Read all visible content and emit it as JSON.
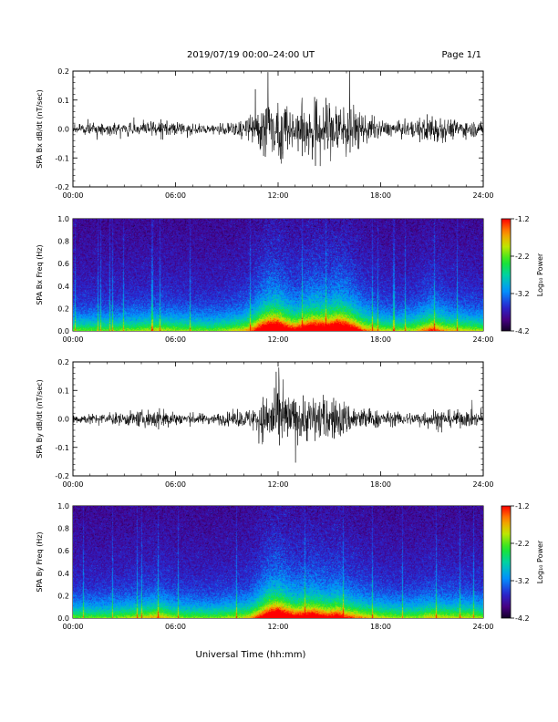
{
  "header": {
    "title": "2019/07/19  00:00–24:00 UT",
    "page": "Page 1/1"
  },
  "footer": {
    "xlabel": "Universal Time (hh:mm)"
  },
  "colorbar": {
    "label": "Log₁₀ Power",
    "ticks": [
      "-1.2",
      "-2.2",
      "-3.2",
      "-4.2"
    ],
    "range": [
      -4.2,
      -1.2
    ]
  },
  "x_ticks": [
    "00:00",
    "06:00",
    "12:00",
    "18:00",
    "24:00"
  ],
  "chart_data": [
    {
      "type": "line",
      "ylabel": "SPA Bx dB/dt (nT/sec)",
      "xlim": [
        0,
        24
      ],
      "ylim": [
        -0.2,
        0.2
      ],
      "yticks": [
        "0.2",
        "0.1",
        "0.0",
        "-0.1",
        "-0.2"
      ],
      "envelope": {
        "hours": [
          0,
          2,
          4,
          5,
          6,
          8,
          9,
          10,
          10.5,
          11,
          11.5,
          12,
          12.5,
          13,
          14,
          15,
          15.5,
          16,
          17,
          18,
          19,
          20,
          21,
          22,
          23,
          24
        ],
        "amplitude": [
          0.03,
          0.03,
          0.04,
          0.05,
          0.04,
          0.03,
          0.04,
          0.06,
          0.09,
          0.15,
          0.2,
          0.2,
          0.15,
          0.12,
          0.18,
          0.17,
          0.2,
          0.18,
          0.09,
          0.05,
          0.04,
          0.05,
          0.1,
          0.06,
          0.05,
          0.04
        ]
      }
    },
    {
      "type": "heatmap",
      "ylabel": "SPA Bx Freq (Hz)",
      "xlim": [
        0,
        24
      ],
      "ylim": [
        0,
        1.0
      ],
      "yticks": [
        "1.0",
        "0.8",
        "0.6",
        "0.4",
        "0.2",
        "0.0"
      ],
      "zlim": [
        -4.2,
        -1.2
      ]
    },
    {
      "type": "line",
      "ylabel": "SPA By dB/dt (nT/sec)",
      "xlim": [
        0,
        24
      ],
      "ylim": [
        -0.2,
        0.2
      ],
      "yticks": [
        "0.2",
        "0.1",
        "0.0",
        "-0.1",
        "-0.2"
      ],
      "envelope": {
        "hours": [
          0,
          2,
          4,
          5,
          6,
          8,
          9,
          10,
          10.5,
          11,
          11.5,
          12,
          12.5,
          13,
          14,
          15,
          15.5,
          16,
          17,
          18,
          19,
          20,
          21,
          22,
          23,
          24
        ],
        "amplitude": [
          0.03,
          0.03,
          0.05,
          0.07,
          0.04,
          0.03,
          0.04,
          0.05,
          0.07,
          0.12,
          0.18,
          0.2,
          0.16,
          0.13,
          0.15,
          0.12,
          0.14,
          0.1,
          0.07,
          0.05,
          0.04,
          0.04,
          0.06,
          0.05,
          0.05,
          0.04
        ]
      }
    },
    {
      "type": "heatmap",
      "ylabel": "SPA By Freq (Hz)",
      "xlim": [
        0,
        24
      ],
      "ylim": [
        0,
        1.0
      ],
      "yticks": [
        "1.0",
        "0.8",
        "0.6",
        "0.4",
        "0.2",
        "0.0"
      ],
      "zlim": [
        -4.2,
        -1.2
      ]
    }
  ]
}
